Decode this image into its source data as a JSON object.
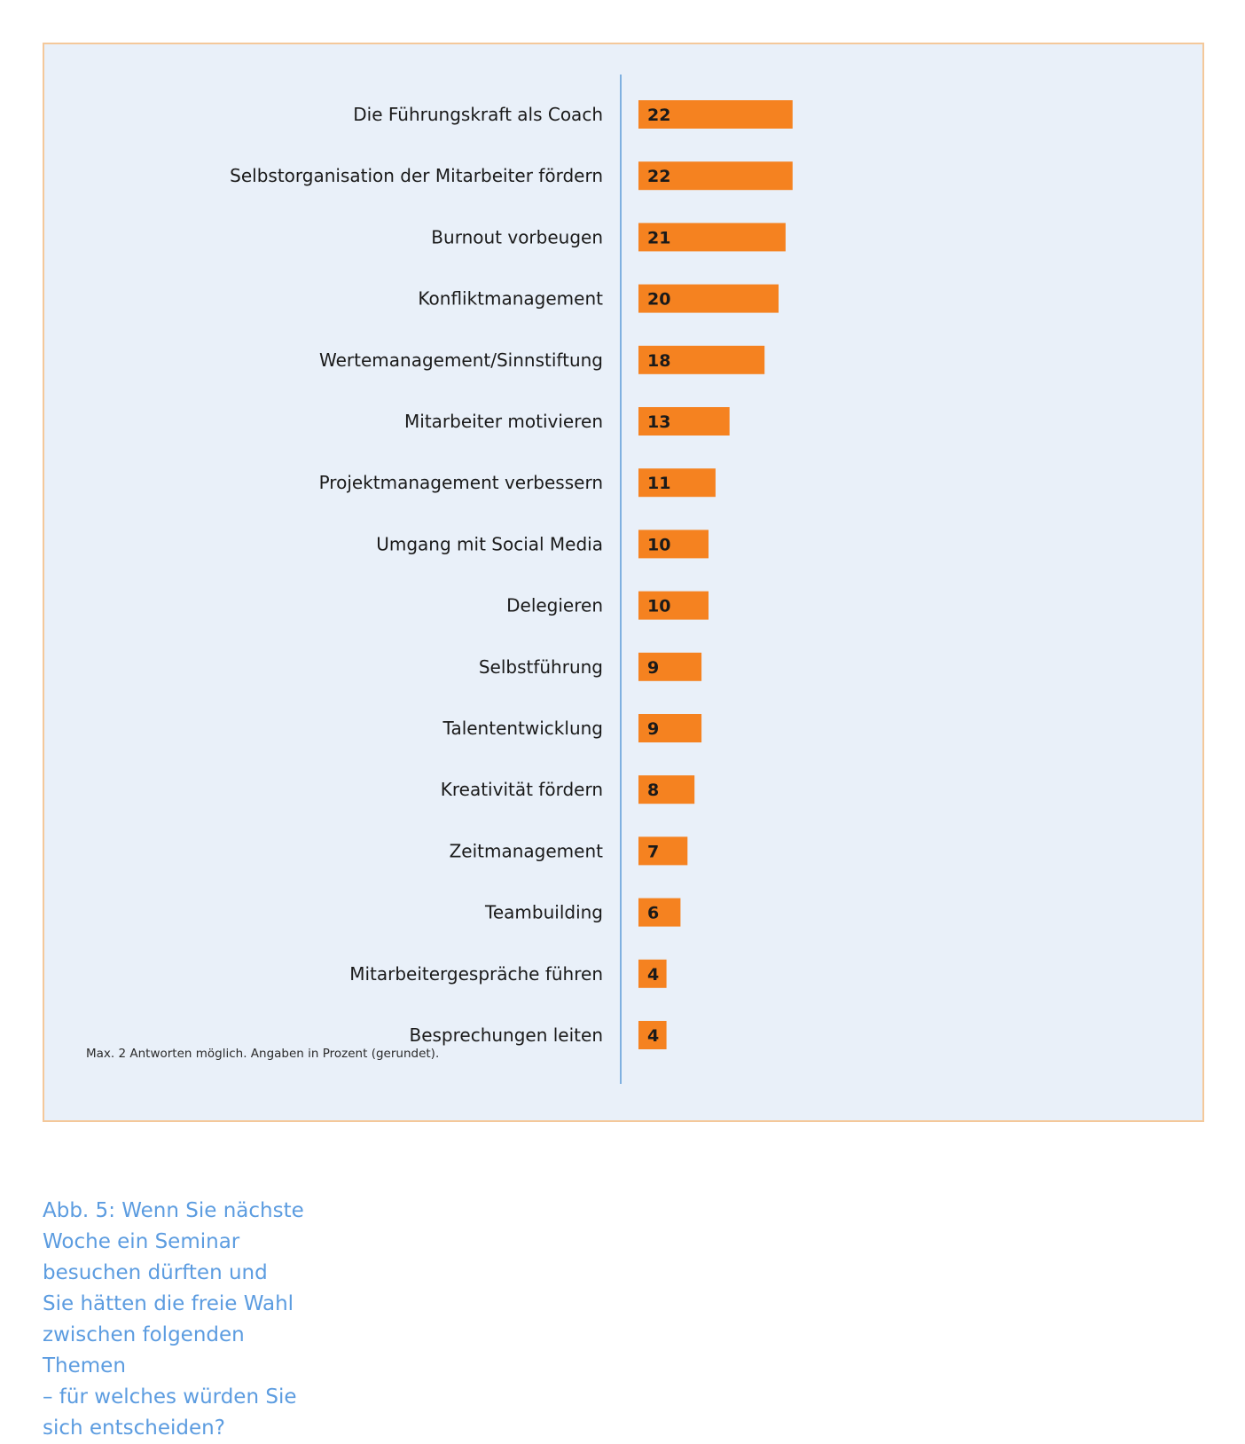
{
  "chart_data": {
    "type": "bar",
    "orientation": "horizontal",
    "categories": [
      "Die Führungskraft als Coach",
      "Selbstorganisation der Mitarbeiter fördern",
      "Burnout vorbeugen",
      "Konfliktmanagement",
      "Wertemanagement/Sinnstiftung",
      "Mitarbeiter motivieren",
      "Projektmanagement verbessern",
      "Umgang mit Social Media",
      "Delegieren",
      "Selbstführung",
      "Talententwicklung",
      "Kreativität fördern",
      "Zeitmanagement",
      "Teambuilding",
      "Mitarbeitergespräche führen",
      "Besprechungen leiten"
    ],
    "values": [
      22,
      22,
      21,
      20,
      18,
      13,
      11,
      10,
      10,
      9,
      9,
      8,
      7,
      6,
      4,
      4
    ],
    "value_labels": [
      "22",
      "22",
      "21",
      "20",
      "18",
      "13",
      "11",
      "10",
      "10",
      "9",
      "9",
      "8",
      "7",
      "6",
      "4",
      "4"
    ],
    "footnote": "Max. 2 Antworten möglich. Angaben in Prozent (gerundet).",
    "bar_color": "#f58220",
    "axis_color": "#7fb0e0",
    "panel_background": "#e9f0f9",
    "panel_border": "#f4c89a"
  },
  "caption": "Abb. 5: Wenn Sie nächste\nWoche ein Seminar\nbesuchen dürften und\nSie hätten die freie Wahl\nzwischen folgenden Themen\n– für welches würden Sie\nsich entscheiden?",
  "caption_color": "#5c9ce0"
}
